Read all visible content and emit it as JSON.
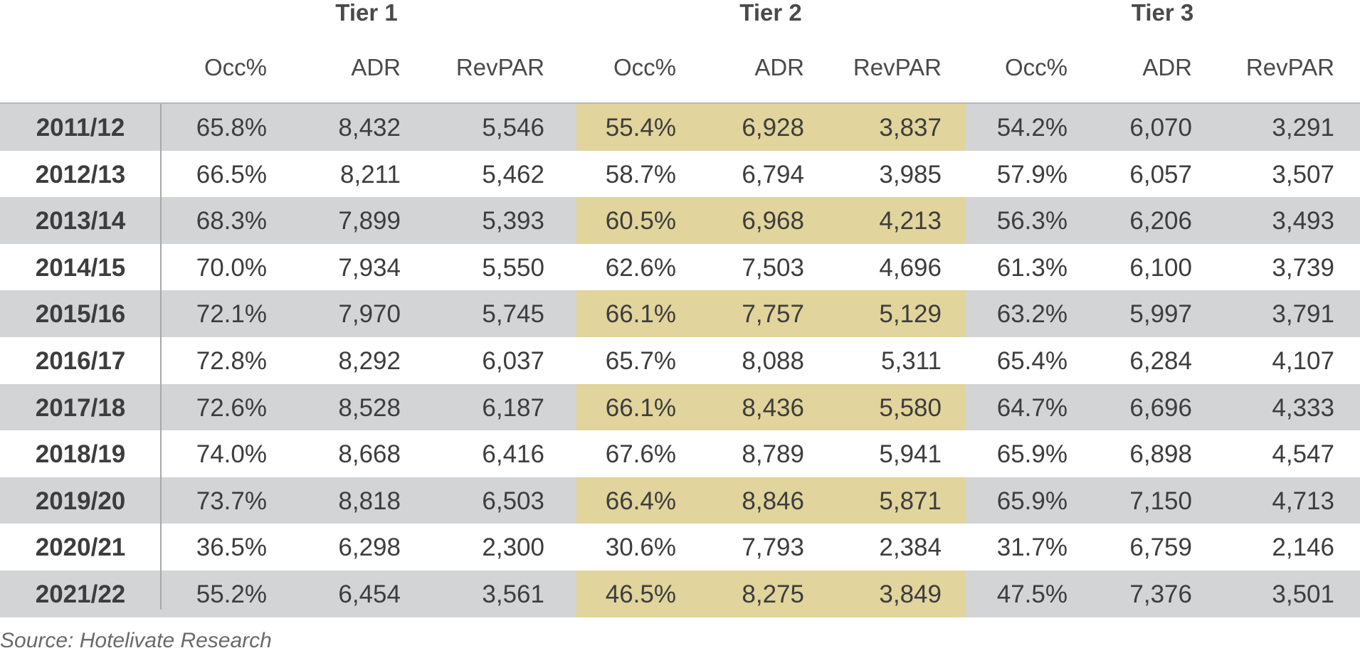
{
  "tiers": [
    "Tier 1",
    "Tier 2",
    "Tier 3"
  ],
  "columns": [
    "Occ%",
    "ADR",
    "RevPAR",
    "Occ%",
    "ADR",
    "RevPAR",
    "Occ%",
    "ADR",
    "RevPAR"
  ],
  "rows": [
    {
      "year": "2011/12",
      "values": [
        "65.8%",
        "8,432",
        "5,546",
        "55.4%",
        "6,928",
        "3,837",
        "54.2%",
        "6,070",
        "3,291"
      ]
    },
    {
      "year": "2012/13",
      "values": [
        "66.5%",
        "8,211",
        "5,462",
        "58.7%",
        "6,794",
        "3,985",
        "57.9%",
        "6,057",
        "3,507"
      ]
    },
    {
      "year": "2013/14",
      "values": [
        "68.3%",
        "7,899",
        "5,393",
        "60.5%",
        "6,968",
        "4,213",
        "56.3%",
        "6,206",
        "3,493"
      ]
    },
    {
      "year": "2014/15",
      "values": [
        "70.0%",
        "7,934",
        "5,550",
        "62.6%",
        "7,503",
        "4,696",
        "61.3%",
        "6,100",
        "3,739"
      ]
    },
    {
      "year": "2015/16",
      "values": [
        "72.1%",
        "7,970",
        "5,745",
        "66.1%",
        "7,757",
        "5,129",
        "63.2%",
        "5,997",
        "3,791"
      ]
    },
    {
      "year": "2016/17",
      "values": [
        "72.8%",
        "8,292",
        "6,037",
        "65.7%",
        "8,088",
        "5,311",
        "65.4%",
        "6,284",
        "4,107"
      ]
    },
    {
      "year": "2017/18",
      "values": [
        "72.6%",
        "8,528",
        "6,187",
        "66.1%",
        "8,436",
        "5,580",
        "64.7%",
        "6,696",
        "4,333"
      ]
    },
    {
      "year": "2018/19",
      "values": [
        "74.0%",
        "8,668",
        "6,416",
        "67.6%",
        "8,789",
        "5,941",
        "65.9%",
        "6,898",
        "4,547"
      ]
    },
    {
      "year": "2019/20",
      "values": [
        "73.7%",
        "8,818",
        "6,503",
        "66.4%",
        "8,846",
        "5,871",
        "65.9%",
        "7,150",
        "4,713"
      ]
    },
    {
      "year": "2020/21",
      "values": [
        "36.5%",
        "6,298",
        "2,300",
        "30.6%",
        "7,793",
        "2,384",
        "31.7%",
        "6,759",
        "2,146"
      ]
    },
    {
      "year": "2021/22",
      "values": [
        "55.2%",
        "6,454",
        "3,561",
        "46.5%",
        "8,275",
        "3,849",
        "47.5%",
        "7,376",
        "3,501"
      ]
    }
  ],
  "source": "Source: Hotelivate Research"
}
